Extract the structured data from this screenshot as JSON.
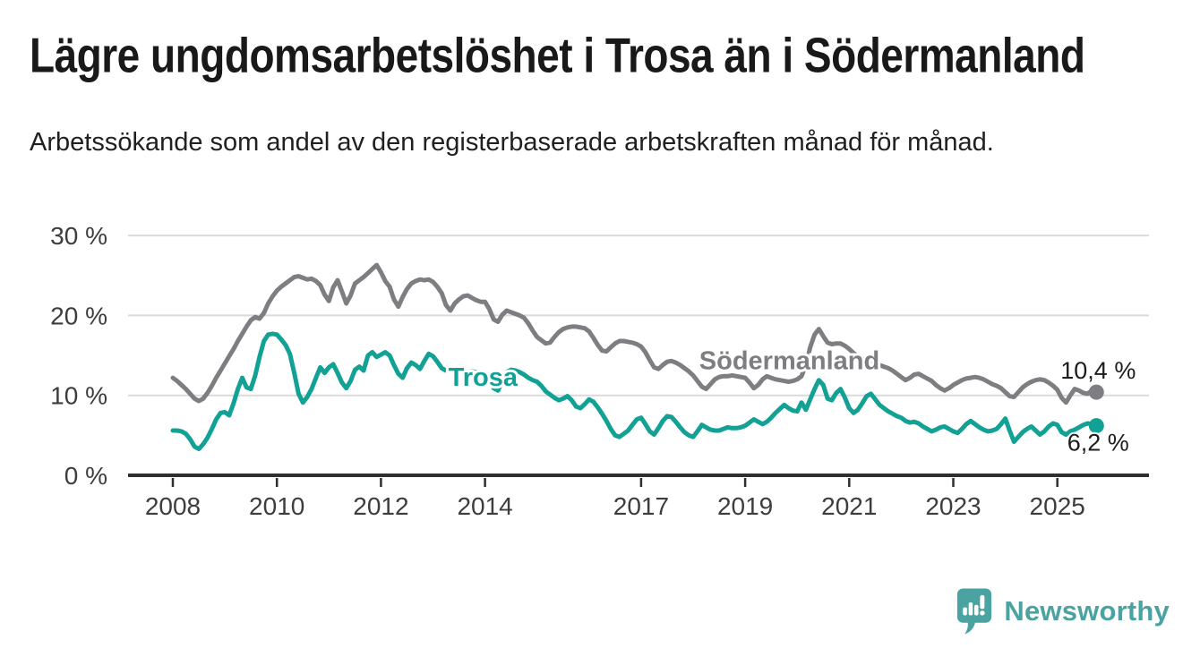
{
  "header": {
    "title": "Lägre ungdomsarbetslöshet i Trosa än i Södermanland",
    "subtitle": "Arbetssökande som andel av den registerbaserade arbetskraften månad för månad."
  },
  "chart_data": {
    "type": "line",
    "title": "Lägre ungdomsarbetslöshet i Trosa än i Södermanland",
    "subtitle": "Arbetssökande som andel av den registerbaserade arbetskraften månad för månad.",
    "unit": "%",
    "grid": true,
    "legend_position": "inline-labels",
    "x_start": 2008,
    "points_per_year": 12,
    "xlim": [
      2007.15,
      2026.75
    ],
    "ylim": [
      0,
      30
    ],
    "y_ticks": [
      {
        "value": 0,
        "label": "0 %"
      },
      {
        "value": 10,
        "label": "10 %"
      },
      {
        "value": 20,
        "label": "20 %"
      },
      {
        "value": 30,
        "label": "30 %"
      }
    ],
    "x_ticks": [
      {
        "year": 2008,
        "label": "2008"
      },
      {
        "year": 2010,
        "label": "2010"
      },
      {
        "year": 2012,
        "label": "2012"
      },
      {
        "year": 2014,
        "label": "2014"
      },
      {
        "year": 2017,
        "label": "2017"
      },
      {
        "year": 2019,
        "label": "2019"
      },
      {
        "year": 2021,
        "label": "2021"
      },
      {
        "year": 2023,
        "label": "2023"
      },
      {
        "year": 2025,
        "label": "2025"
      }
    ],
    "series": [
      {
        "name": "Södermanland",
        "color": "#7e7e82",
        "end_label": "10,4 %",
        "end_value": 10.4,
        "end_label_offset": {
          "dx": 2,
          "dy": -15
        },
        "label_anchor": {
          "year": 2019.85,
          "value": 14.4
        },
        "values": [
          12.2,
          11.8,
          11.3,
          10.8,
          10.2,
          9.6,
          9.3,
          9.6,
          10.3,
          11.2,
          12.2,
          13.1,
          14.0,
          14.9,
          15.8,
          16.8,
          17.7,
          18.6,
          19.4,
          19.8,
          19.6,
          20.3,
          21.5,
          22.4,
          23.1,
          23.6,
          24.0,
          24.4,
          24.8,
          24.9,
          24.7,
          24.5,
          24.6,
          24.3,
          23.8,
          22.6,
          21.8,
          23.5,
          24.4,
          23.0,
          21.5,
          22.5,
          24.0,
          24.4,
          24.8,
          25.3,
          25.8,
          26.3,
          25.4,
          24.3,
          23.6,
          22.0,
          21.1,
          22.3,
          23.3,
          24.0,
          24.3,
          24.5,
          24.4,
          24.5,
          24.2,
          23.6,
          22.8,
          21.3,
          20.6,
          21.5,
          22.0,
          22.4,
          22.5,
          22.2,
          21.9,
          21.7,
          21.7,
          20.8,
          19.5,
          19.2,
          20.1,
          20.6,
          20.4,
          20.2,
          20.0,
          19.7,
          19.0,
          18.1,
          17.3,
          16.9,
          16.5,
          16.6,
          17.3,
          17.9,
          18.3,
          18.5,
          18.6,
          18.6,
          18.5,
          18.4,
          18.0,
          17.2,
          16.3,
          15.6,
          15.5,
          16.0,
          16.5,
          16.8,
          16.8,
          16.7,
          16.6,
          16.4,
          16.1,
          15.4,
          14.4,
          13.5,
          13.3,
          13.8,
          14.2,
          14.3,
          14.1,
          13.8,
          13.4,
          13.0,
          12.5,
          11.8,
          11.1,
          10.8,
          11.4,
          12.0,
          12.3,
          12.4,
          12.4,
          12.5,
          12.4,
          12.3,
          12.2,
          11.6,
          10.9,
          11.3,
          12.0,
          12.4,
          12.2,
          12.0,
          11.9,
          11.8,
          11.7,
          11.8,
          12.0,
          12.4,
          13.8,
          16.0,
          17.6,
          18.3,
          17.4,
          16.6,
          16.4,
          16.5,
          16.5,
          16.2,
          15.8,
          15.3,
          14.9,
          14.6,
          14.4,
          14.2,
          14.0,
          13.8,
          13.6,
          13.4,
          13.1,
          12.7,
          12.3,
          11.9,
          12.2,
          12.6,
          12.7,
          12.4,
          12.1,
          11.8,
          11.3,
          10.9,
          10.6,
          10.9,
          11.3,
          11.6,
          11.9,
          12.1,
          12.2,
          12.3,
          12.2,
          12.0,
          11.7,
          11.4,
          11.2,
          10.9,
          10.4,
          9.9,
          9.8,
          10.4,
          11.0,
          11.4,
          11.7,
          11.9,
          12.0,
          11.9,
          11.6,
          11.2,
          10.7,
          9.7,
          9.1,
          10.0,
          10.8,
          10.6,
          10.3,
          10.2,
          10.6,
          10.4
        ]
      },
      {
        "name": "Trosa",
        "color": "#12a195",
        "end_label": "6,2 %",
        "end_value": 6.2,
        "end_label_offset": {
          "dx": 2,
          "dy": 28
        },
        "label_anchor": {
          "year": 2013.96,
          "value": 12.3
        },
        "values": [
          5.6,
          5.6,
          5.5,
          5.2,
          4.5,
          3.6,
          3.3,
          3.9,
          4.7,
          5.8,
          7.0,
          7.8,
          7.9,
          7.5,
          9.0,
          10.8,
          12.2,
          11.0,
          10.8,
          12.5,
          14.8,
          16.8,
          17.6,
          17.7,
          17.6,
          17.0,
          16.3,
          15.2,
          12.8,
          10.2,
          9.1,
          9.8,
          10.8,
          12.2,
          13.5,
          12.8,
          13.5,
          13.9,
          12.8,
          11.6,
          10.9,
          11.8,
          13.2,
          13.6,
          13.1,
          15.0,
          15.4,
          14.8,
          15.1,
          15.4,
          15.0,
          13.8,
          12.7,
          12.2,
          13.4,
          14.1,
          13.8,
          13.3,
          14.3,
          15.2,
          14.9,
          14.2,
          13.4,
          13.1,
          13.2,
          13.0,
          13.1,
          13.0,
          12.9,
          13.0,
          12.9,
          12.8,
          12.7,
          12.0,
          10.9,
          10.6,
          11.8,
          12.9,
          13.2,
          13.1,
          12.9,
          12.6,
          12.2,
          11.9,
          11.7,
          11.2,
          10.5,
          10.1,
          9.7,
          9.4,
          9.6,
          9.9,
          9.4,
          8.6,
          8.4,
          8.9,
          9.5,
          9.2,
          8.5,
          7.7,
          6.8,
          5.8,
          5.0,
          4.8,
          5.2,
          5.6,
          6.3,
          7.0,
          7.2,
          6.4,
          5.5,
          5.1,
          5.9,
          6.8,
          7.4,
          7.3,
          6.7,
          6.0,
          5.4,
          5.0,
          4.8,
          5.5,
          6.3,
          6.0,
          5.7,
          5.6,
          5.6,
          5.8,
          6.0,
          5.9,
          5.9,
          6.0,
          6.2,
          6.6,
          7.0,
          6.7,
          6.4,
          6.7,
          7.2,
          7.8,
          8.3,
          8.8,
          8.4,
          8.1,
          8.0,
          9.1,
          8.2,
          9.5,
          10.8,
          11.9,
          11.3,
          9.6,
          9.4,
          10.3,
          10.8,
          9.7,
          8.4,
          7.8,
          8.2,
          9.0,
          9.9,
          10.2,
          9.5,
          8.8,
          8.4,
          8.0,
          7.7,
          7.4,
          7.2,
          6.8,
          6.6,
          6.7,
          6.5,
          6.1,
          5.8,
          5.5,
          5.7,
          6.0,
          6.1,
          5.8,
          5.5,
          5.3,
          5.8,
          6.4,
          6.8,
          6.4,
          6.0,
          5.7,
          5.5,
          5.6,
          5.8,
          6.4,
          7.1,
          5.6,
          4.2,
          4.8,
          5.4,
          5.8,
          6.1,
          5.6,
          5.1,
          5.5,
          6.1,
          6.5,
          6.3,
          5.4,
          5.1,
          5.5,
          5.7,
          6.0,
          6.3,
          6.5,
          6.4,
          6.2
        ]
      }
    ],
    "colors": {
      "grid": "#dadada",
      "axis": "#2f2f2f",
      "tick_text": "#3d3d3d"
    }
  },
  "footer": {
    "brand": "Newsworthy",
    "logo_color": "#4aa3a0",
    "logo_icon": "speech-bubble-bar-chart"
  }
}
